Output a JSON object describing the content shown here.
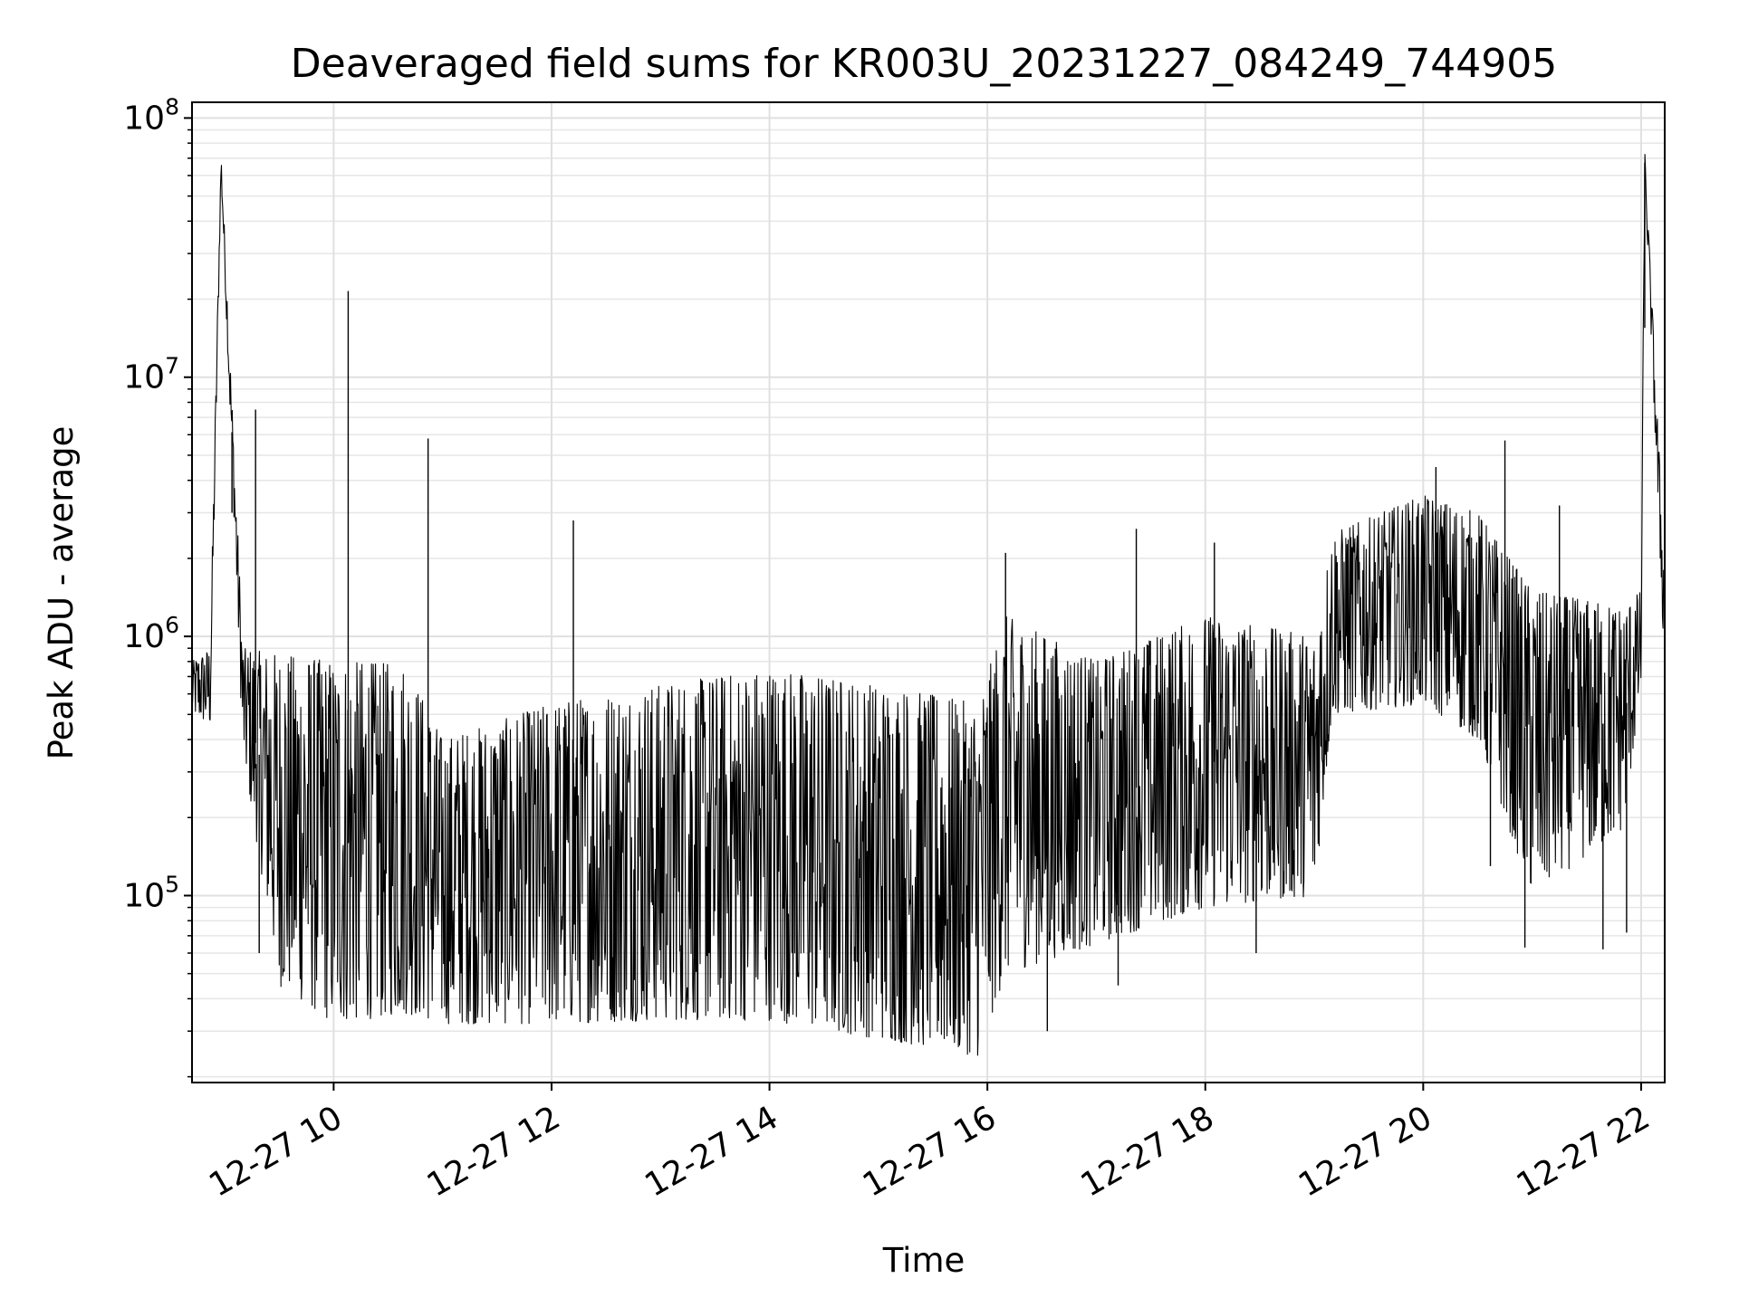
{
  "chart_data": {
    "type": "line",
    "title": "Deaveraged field sums for KR003U_20231227_084249_744905",
    "xlabel": "Time",
    "ylabel": "Peak ADU - average",
    "y_scale": "log",
    "ylim": [
      19000,
      115000000
    ],
    "xlim": [
      "2023-12-27 08:42",
      "2023-12-27 22:13"
    ],
    "grid": "major and minor",
    "legend": "none",
    "line_color": "#000000",
    "x_ticks": [
      {
        "value": "2023-12-27 10:00",
        "label": "12-27 10"
      },
      {
        "value": "2023-12-27 12:00",
        "label": "12-27 12"
      },
      {
        "value": "2023-12-27 14:00",
        "label": "12-27 14"
      },
      {
        "value": "2023-12-27 16:00",
        "label": "12-27 16"
      },
      {
        "value": "2023-12-27 18:00",
        "label": "12-27 18"
      },
      {
        "value": "2023-12-27 20:00",
        "label": "12-27 20"
      },
      {
        "value": "2023-12-27 22:00",
        "label": "12-27 22"
      }
    ],
    "y_ticks": [
      {
        "value": 100000,
        "base": "10",
        "exp": "5"
      },
      {
        "value": 1000000,
        "base": "10",
        "exp": "6"
      },
      {
        "value": 10000000,
        "base": "10",
        "exp": "7"
      },
      {
        "value": 100000000,
        "base": "10",
        "exp": "8"
      }
    ],
    "envelope": {
      "description_units": "time / ADU",
      "points": [
        {
          "t": "2023-12-27 08:42",
          "low": 500000,
          "high": 800000
        },
        {
          "t": "2023-12-27 08:52",
          "low": 450000,
          "high": 900000
        },
        {
          "t": "2023-12-27 08:58",
          "low": 60000000,
          "high": 75000000
        },
        {
          "t": "2023-12-27 09:10",
          "low": 350000,
          "high": 900000
        },
        {
          "t": "2023-12-27 09:30",
          "low": 45000,
          "high": 850000
        },
        {
          "t": "2023-12-27 10:00",
          "low": 32000,
          "high": 800000
        },
        {
          "t": "2023-12-27 10:40",
          "low": 35000,
          "high": 780000
        },
        {
          "t": "2023-12-27 11:00",
          "low": 32000,
          "high": 400000
        },
        {
          "t": "2023-12-27 12:00",
          "low": 32000,
          "high": 550000
        },
        {
          "t": "2023-12-27 13:00",
          "low": 33000,
          "high": 650000
        },
        {
          "t": "2023-12-27 14:00",
          "low": 33000,
          "high": 750000
        },
        {
          "t": "2023-12-27 15:00",
          "low": 28000,
          "high": 650000
        },
        {
          "t": "2023-12-27 15:55",
          "low": 24000,
          "high": 550000
        },
        {
          "t": "2023-12-27 16:10",
          "low": 50000,
          "high": 1200000
        },
        {
          "t": "2023-12-27 17:00",
          "low": 65000,
          "high": 800000
        },
        {
          "t": "2023-12-27 18:00",
          "low": 90000,
          "high": 1200000
        },
        {
          "t": "2023-12-27 19:00",
          "low": 100000,
          "high": 1000000
        },
        {
          "t": "2023-12-27 19:10",
          "low": 500000,
          "high": 2500000
        },
        {
          "t": "2023-12-27 20:00",
          "low": 550000,
          "high": 3500000
        },
        {
          "t": "2023-12-27 20:30",
          "low": 400000,
          "high": 3000000
        },
        {
          "t": "2023-12-27 21:00",
          "low": 100000,
          "high": 1500000
        },
        {
          "t": "2023-12-27 21:50",
          "low": 180000,
          "high": 1300000
        },
        {
          "t": "2023-12-27 22:00",
          "low": 600000,
          "high": 1500000
        },
        {
          "t": "2023-12-27 22:02",
          "low": 60000000,
          "high": 75000000
        },
        {
          "t": "2023-12-27 22:13",
          "low": 700000,
          "high": 1800000
        }
      ]
    },
    "spikes": [
      {
        "t": "2023-12-27 09:04",
        "value": 3000000
      },
      {
        "t": "2023-12-27 09:17",
        "value": 7500000
      },
      {
        "t": "2023-12-27 10:08",
        "value": 21500000
      },
      {
        "t": "2023-12-27 10:52",
        "value": 5800000
      },
      {
        "t": "2023-12-27 12:12",
        "value": 2800000
      },
      {
        "t": "2023-12-27 16:10",
        "value": 2100000
      },
      {
        "t": "2023-12-27 17:22",
        "value": 2600000
      },
      {
        "t": "2023-12-27 18:05",
        "value": 2300000
      },
      {
        "t": "2023-12-27 20:07",
        "value": 4500000
      },
      {
        "t": "2023-12-27 20:45",
        "value": 5700000
      },
      {
        "t": "2023-12-27 21:15",
        "value": 3200000
      },
      {
        "t": "2023-12-27 22:02",
        "value": 15500000
      },
      {
        "t": "2023-12-27 16:33",
        "value": 30000
      },
      {
        "t": "2023-12-27 17:12",
        "value": 45000
      },
      {
        "t": "2023-12-27 18:28",
        "value": 60000
      },
      {
        "t": "2023-12-27 20:37",
        "value": 130000
      },
      {
        "t": "2023-12-27 20:56",
        "value": 63000
      },
      {
        "t": "2023-12-27 21:39",
        "value": 62000
      },
      {
        "t": "2023-12-27 21:52",
        "value": 72000
      },
      {
        "t": "2023-12-27 09:19",
        "value": 60000
      }
    ]
  }
}
